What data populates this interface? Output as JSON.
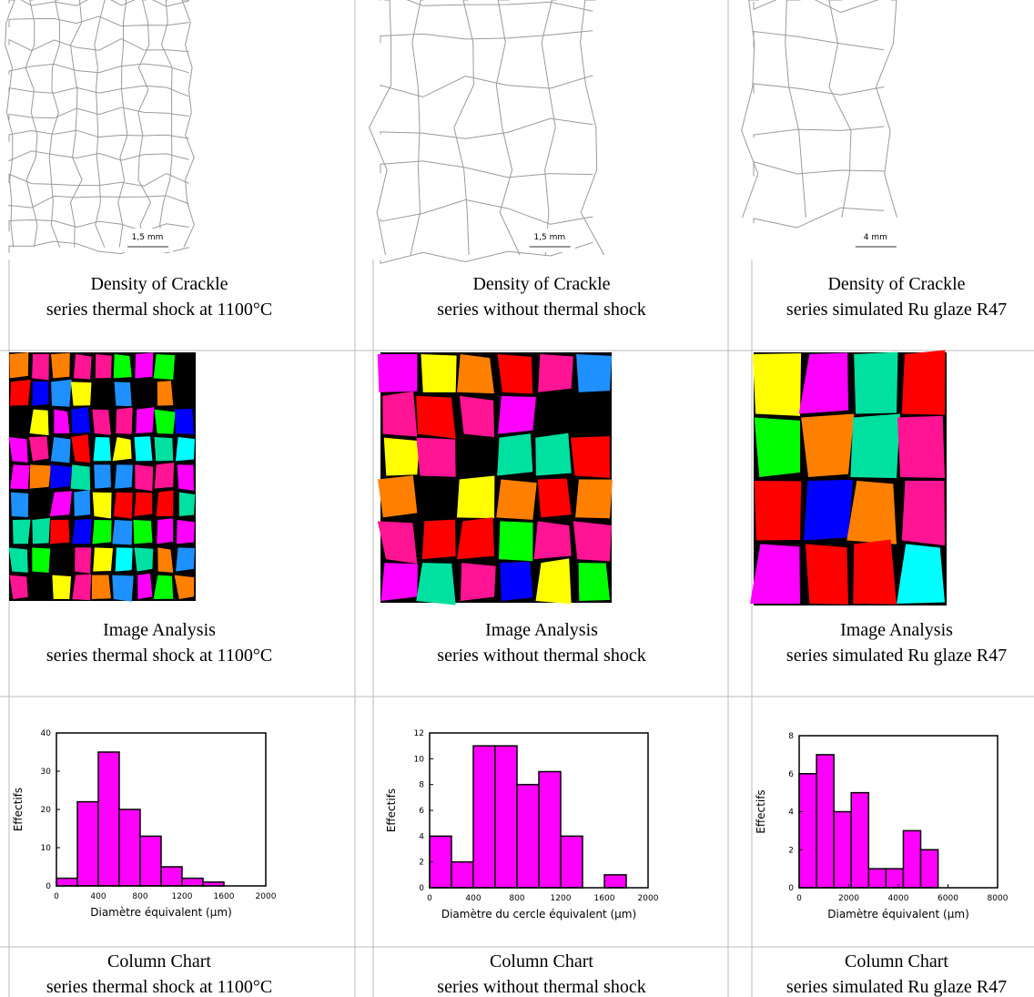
{
  "columns": [
    {
      "scale_bar": "1,5 mm",
      "crackle_caption": [
        "Density of Crackle",
        "series thermal shock at 1100°C"
      ],
      "analysis_caption": [
        "Image Analysis",
        "series thermal shock at 1100°C"
      ],
      "chart_caption": [
        "Column Chart",
        "series thermal shock at 1100°C"
      ]
    },
    {
      "scale_bar": "1,5 mm",
      "crackle_caption": [
        "Density of Crackle",
        "series  without thermal shock"
      ],
      "analysis_caption": [
        "Image Analysis",
        "series  without thermal shock"
      ],
      "chart_caption": [
        "Column Chart",
        "series  without thermal shock"
      ]
    },
    {
      "scale_bar": "4 mm",
      "crackle_caption": [
        "Density of Crackle",
        "series simulated Ru glaze R47"
      ],
      "analysis_caption": [
        "Image Analysis",
        "series simulated Ru glaze R47"
      ],
      "chart_caption": [
        "Column Chart",
        "series simulated Ru glaze R47"
      ]
    }
  ],
  "chart_data": [
    {
      "type": "histogram",
      "xlabel": "Diamètre équivalent (µm)",
      "ylabel": "Effectifs",
      "color": "#ff00ff",
      "bins": [
        0,
        200,
        400,
        600,
        800,
        1000,
        1200,
        1400,
        1600
      ],
      "values": [
        2,
        22,
        35,
        20,
        13,
        5,
        2,
        1
      ],
      "xlim": [
        0,
        2000
      ],
      "xticks": [
        0,
        400,
        800,
        1200,
        1600,
        2000
      ],
      "ylim": [
        0,
        40
      ],
      "yticks": [
        0,
        10,
        20,
        30,
        40
      ]
    },
    {
      "type": "histogram",
      "xlabel": "Diamètre du cercle équivalent (µm)",
      "ylabel": "Effectifs",
      "color": "#ff00ff",
      "bins": [
        0,
        200,
        400,
        600,
        800,
        1000,
        1200,
        1400,
        1600,
        1800
      ],
      "values": [
        4,
        2,
        11,
        11,
        8,
        9,
        4,
        0,
        1
      ],
      "xlim": [
        0,
        2000
      ],
      "xticks": [
        0,
        400,
        800,
        1200,
        1600,
        2000
      ],
      "ylim": [
        0,
        12
      ],
      "yticks": [
        0,
        2,
        4,
        6,
        8,
        10,
        12
      ]
    },
    {
      "type": "histogram",
      "xlabel": "Diamètre équivalent (µm)",
      "ylabel": "Effectifs",
      "color": "#ff00ff",
      "bins": [
        0,
        700,
        1400,
        2100,
        2800,
        3500,
        4200,
        4900,
        5600
      ],
      "values": [
        6,
        7,
        4,
        5,
        1,
        1,
        3,
        2
      ],
      "xlim": [
        0,
        8000
      ],
      "xticks": [
        0,
        2000,
        4000,
        6000,
        8000
      ],
      "ylim": [
        0,
        8
      ],
      "yticks": [
        0,
        2,
        4,
        6,
        8
      ]
    }
  ]
}
